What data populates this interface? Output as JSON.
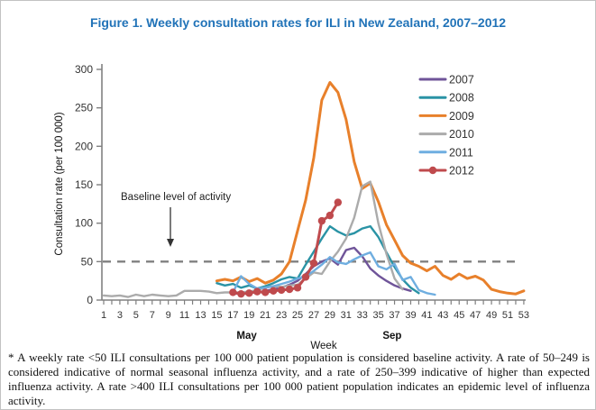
{
  "figure": {
    "title": "Figure 1. Weekly consultation rates for ILI in New Zealand, 2007–2012",
    "title_color": "#2173B8",
    "footnote": "* A weekly rate <50 ILI consultations per 100 000 patient population is considered baseline activity. A rate of 50–249 is considered indicative of normal seasonal influenza activity, and a rate of 250–399 indicative of higher than expected influenza activity. A rate >400 ILI consultations per 100 000 patient population indicates an epidemic level of influenza activity."
  },
  "chart_data": {
    "type": "line",
    "title": "Figure 1. Weekly consultation rates for ILI in New Zealand, 2007–2012",
    "xlabel": "Week",
    "ylabel": "Consultation rate (per 100 000)",
    "xlim": [
      1,
      53
    ],
    "ylim": [
      0,
      300
    ],
    "y_ticks": [
      0,
      50,
      100,
      150,
      200,
      250,
      300
    ],
    "x_tick_labels": [
      1,
      3,
      5,
      7,
      9,
      11,
      13,
      15,
      17,
      19,
      21,
      23,
      25,
      27,
      29,
      31,
      33,
      35,
      37,
      39,
      41,
      43,
      45,
      47,
      49,
      51,
      53
    ],
    "month_labels": [
      {
        "text": "May",
        "week": 18.7
      },
      {
        "text": "Sep",
        "week": 36.7
      }
    ],
    "grid": false,
    "legend_position": "top-right",
    "baseline": {
      "value": 50,
      "annotation": "Baseline level of activity",
      "line_color": "#808080"
    },
    "axis_color": "#808080",
    "series": [
      {
        "name": "2007",
        "color": "#6F5499",
        "marker": false,
        "start_week": 17,
        "values": [
          8,
          9,
          10,
          10,
          12,
          14,
          16,
          20,
          25,
          34,
          44,
          50,
          54,
          46,
          65,
          68,
          57,
          41,
          32,
          25,
          19,
          15,
          12
        ]
      },
      {
        "name": "2008",
        "color": "#2A93A5",
        "marker": false,
        "start_week": 15,
        "values": [
          22,
          19,
          21,
          16,
          19,
          15,
          18,
          22,
          27,
          30,
          28,
          46,
          63,
          80,
          96,
          89,
          84,
          87,
          93,
          96,
          82,
          62,
          43,
          27,
          16,
          9
        ]
      },
      {
        "name": "2009",
        "color": "#E8802B",
        "marker": false,
        "start_week": 15,
        "values": [
          25,
          27,
          25,
          30,
          24,
          28,
          22,
          26,
          34,
          50,
          90,
          130,
          185,
          260,
          283,
          270,
          235,
          180,
          145,
          152,
          128,
          98,
          78,
          58,
          48,
          44,
          38,
          44,
          32,
          27,
          34,
          28,
          31,
          26,
          14,
          11,
          9,
          8,
          12
        ]
      },
      {
        "name": "2010",
        "color": "#ABABAB",
        "marker": false,
        "start_week": 1,
        "values": [
          6,
          5,
          6,
          4,
          7,
          5,
          7,
          6,
          5,
          6,
          12,
          12,
          12,
          11,
          9,
          10,
          10,
          10,
          11,
          13,
          16,
          18,
          17,
          19,
          20,
          28,
          36,
          34,
          50,
          63,
          80,
          107,
          148,
          154,
          100,
          60,
          28,
          14
        ]
      },
      {
        "name": "2011",
        "color": "#6FAEE0",
        "marker": false,
        "start_week": 17,
        "values": [
          10,
          31,
          21,
          15,
          16,
          18,
          21,
          24,
          28,
          31,
          38,
          46,
          56,
          49,
          47,
          53,
          58,
          62,
          44,
          40,
          47,
          26,
          30,
          13,
          9,
          7
        ]
      },
      {
        "name": "2012",
        "color": "#BF4A4D",
        "marker": true,
        "start_week": 17,
        "values": [
          10,
          8,
          9,
          11,
          10,
          12,
          13,
          14,
          16,
          30,
          48,
          103,
          110,
          127
        ]
      }
    ]
  }
}
